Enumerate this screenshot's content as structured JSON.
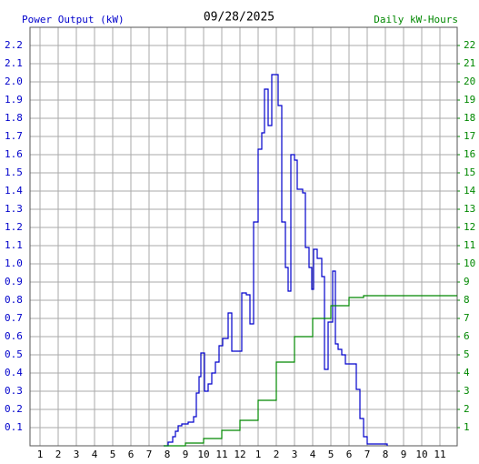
{
  "chart_data": {
    "type": "step",
    "title": "09/28/2025",
    "ylabel": "Power Output (kW)",
    "y2label": "Daily kW-Hours",
    "xlim": [
      0.45,
      23.95
    ],
    "xticks": [
      1,
      2,
      3,
      4,
      5,
      6,
      7,
      8,
      9,
      10,
      11,
      12,
      {
        "value": 13,
        "label": "1"
      },
      {
        "value": 14,
        "label": "2"
      },
      {
        "value": 15,
        "label": "3"
      },
      {
        "value": 16,
        "label": "4"
      },
      {
        "value": 17,
        "label": "5"
      },
      {
        "value": 18,
        "label": "6"
      },
      {
        "value": 19,
        "label": "7"
      },
      {
        "value": 20,
        "label": "8"
      },
      {
        "value": 21,
        "label": "9"
      },
      {
        "value": 22,
        "label": "10"
      },
      {
        "value": 23,
        "label": "11"
      }
    ],
    "ylim": [
      0,
      2.3
    ],
    "yticks": [
      0.1,
      0.2,
      0.3,
      0.4,
      0.5,
      0.6,
      0.7,
      0.8,
      0.9,
      {
        "value": 1,
        "label": "1.0"
      },
      1.1,
      1.2,
      1.3,
      1.4,
      1.5,
      1.6,
      1.7,
      1.8,
      1.9,
      {
        "value": 2,
        "label": "2.0"
      },
      2.1,
      2.2
    ],
    "y2lim": [
      0,
      23
    ],
    "y2ticks": [
      1,
      2,
      3,
      4,
      5,
      6,
      7,
      8,
      9,
      10,
      11,
      12,
      13,
      14,
      15,
      16,
      17,
      18,
      19,
      20,
      21,
      22
    ],
    "grid": true,
    "series": [
      {
        "color": "#0000cc",
        "axis": "y",
        "x": [
          7.8,
          8.05,
          8.3,
          8.45,
          8.6,
          8.8,
          9.15,
          9.45,
          9.6,
          9.75,
          9.85,
          10.05,
          10.25,
          10.45,
          10.65,
          10.85,
          11.05,
          11.35,
          11.55,
          11.95,
          12.1,
          12.35,
          12.55,
          12.75,
          13.0,
          13.2,
          13.35,
          13.55,
          13.75,
          14.1,
          14.3,
          14.5,
          14.65,
          14.8,
          15.0,
          15.15,
          15.45,
          15.6,
          15.8,
          15.95,
          16.05,
          16.25,
          16.5,
          16.65,
          16.85,
          17.1,
          17.25,
          17.4,
          17.6,
          17.8,
          18.2,
          18.4,
          18.6,
          18.8,
          19.0,
          20.1
        ],
        "values": [
          0,
          0.02,
          0.05,
          0.08,
          0.11,
          0.12,
          0.13,
          0.16,
          0.29,
          0.38,
          0.51,
          0.3,
          0.34,
          0.4,
          0.46,
          0.55,
          0.59,
          0.73,
          0.52,
          0.52,
          0.84,
          0.83,
          0.67,
          1.23,
          1.63,
          1.72,
          1.96,
          1.76,
          2.04,
          1.87,
          1.23,
          0.98,
          0.85,
          1.6,
          1.57,
          1.41,
          1.39,
          1.09,
          0.98,
          0.86,
          1.08,
          1.03,
          0.93,
          0.42,
          0.68,
          0.96,
          0.56,
          0.53,
          0.5,
          0.45,
          0.45,
          0.31,
          0.15,
          0.05,
          0.01,
          0
        ]
      },
      {
        "color": "#008800",
        "axis": "y2",
        "x": [
          7.8,
          9,
          10,
          11,
          12,
          13,
          14,
          15,
          16,
          17,
          18,
          18.8,
          23.95
        ],
        "values": [
          0,
          0.15,
          0.4,
          0.85,
          1.4,
          2.5,
          4.6,
          6.0,
          7.0,
          7.7,
          8.15,
          8.25,
          8.25
        ]
      }
    ]
  }
}
